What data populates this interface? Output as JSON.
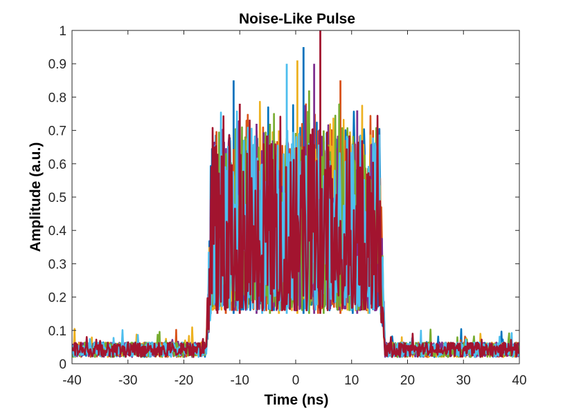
{
  "chart_data": {
    "type": "line",
    "title": "Noise-Like Pulse",
    "xlabel": "Time (ns)",
    "ylabel": "Amplitude (a.u.)",
    "xlim": [
      -40,
      40
    ],
    "ylim": [
      0,
      1
    ],
    "xticks": [
      "-40",
      "-30",
      "-20",
      "-10",
      "0",
      "10",
      "20",
      "30",
      "40"
    ],
    "xtick_values": [
      -40,
      -30,
      -20,
      -10,
      0,
      10,
      20,
      30,
      40
    ],
    "yticks": [
      "0",
      "0.1",
      "0.2",
      "0.3",
      "0.4",
      "0.5",
      "0.6",
      "0.7",
      "0.8",
      "0.9",
      "1"
    ],
    "ytick_values": [
      0,
      0.1,
      0.2,
      0.3,
      0.4,
      0.5,
      0.6,
      0.7,
      0.8,
      0.9,
      1
    ],
    "grid": false,
    "legend": "none",
    "pulse_window_ns": [
      -16,
      16
    ],
    "baseline_amplitude": 0.04,
    "series": [
      {
        "color": "#0072BD",
        "peaks": [
          {
            "x": -11.1,
            "y": 0.85
          },
          {
            "x": 1.4,
            "y": 0.95
          },
          {
            "x": -15.2,
            "y": 0.44
          },
          {
            "x": 10.2,
            "y": 0.66
          }
        ]
      },
      {
        "color": "#D95319",
        "peaks": [
          {
            "x": 8,
            "y": 0.85
          },
          {
            "x": -12.5,
            "y": 0.6
          },
          {
            "x": 4,
            "y": 0.7
          }
        ]
      },
      {
        "color": "#EDB120",
        "peaks": [
          {
            "x": 0.3,
            "y": 0.91
          },
          {
            "x": -3,
            "y": 0.7
          },
          {
            "x": 13,
            "y": 0.55
          }
        ]
      },
      {
        "color": "#7E2F8E",
        "peaks": [
          {
            "x": 3.3,
            "y": 0.9
          },
          {
            "x": 11,
            "y": 0.76
          },
          {
            "x": -7,
            "y": 0.72
          }
        ]
      },
      {
        "color": "#77AC30",
        "peaks": [
          {
            "x": 2.4,
            "y": 0.82
          },
          {
            "x": -4.6,
            "y": 0.72
          },
          {
            "x": 5,
            "y": 0.7
          }
        ]
      },
      {
        "color": "#4DBEEE",
        "peaks": [
          {
            "x": 13.2,
            "y": 0.54
          },
          {
            "x": -1.6,
            "y": 0.9
          },
          {
            "x": -6,
            "y": 0.6
          }
        ]
      },
      {
        "color": "#A2142F",
        "peaks": [
          {
            "x": 4.4,
            "y": 1.0
          },
          {
            "x": -14,
            "y": 0.63
          },
          {
            "x": -10,
            "y": 0.78
          }
        ]
      }
    ]
  }
}
